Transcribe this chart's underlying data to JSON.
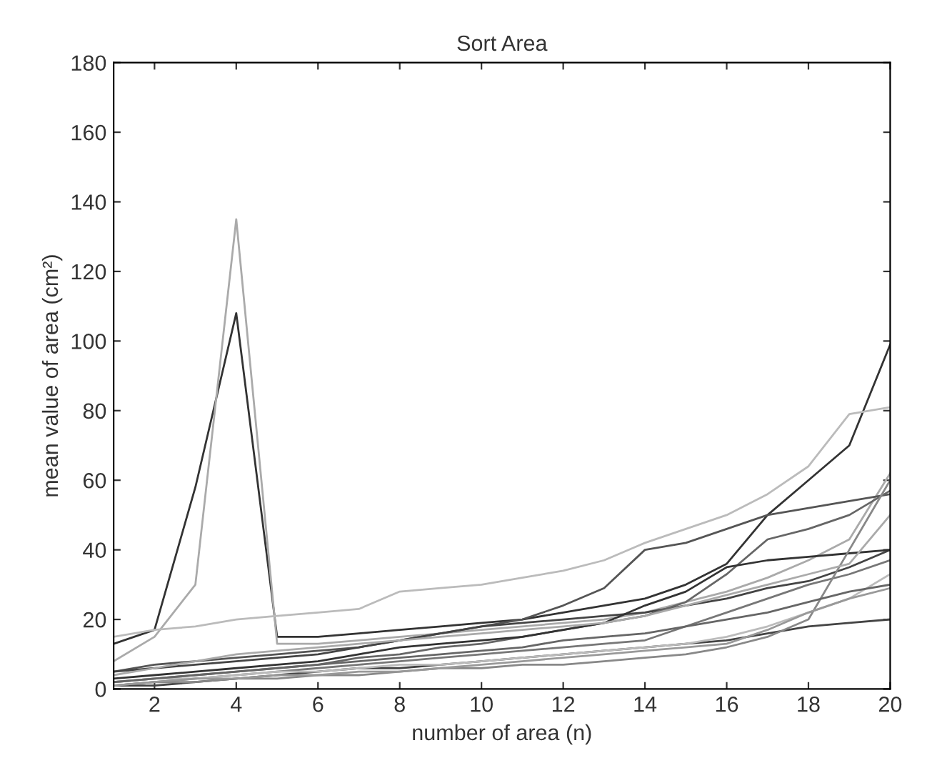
{
  "chart_data": {
    "type": "line",
    "title": "Sort Area",
    "xlabel": "number of area (n)",
    "ylabel": "mean value of area (cm²)",
    "x": [
      1,
      2,
      3,
      4,
      5,
      6,
      7,
      8,
      9,
      10,
      11,
      12,
      13,
      14,
      15,
      16,
      17,
      18,
      19,
      20
    ],
    "xlim": [
      1,
      20
    ],
    "ylim": [
      0,
      180
    ],
    "xticks": [
      2,
      4,
      6,
      8,
      10,
      12,
      14,
      16,
      18,
      20
    ],
    "yticks": [
      0,
      20,
      40,
      60,
      80,
      100,
      120,
      140,
      160,
      180
    ],
    "grid": false,
    "marker": "none",
    "line_style": "solid",
    "series": [
      {
        "color": "#333333",
        "values": [
          13,
          17,
          58,
          108,
          15,
          15,
          16,
          17,
          18,
          19,
          20,
          22,
          24,
          26,
          30,
          36,
          50,
          60,
          70,
          99
        ]
      },
      {
        "color": "#aaaaaa",
        "values": [
          8,
          15,
          30,
          135,
          13,
          13,
          14,
          15,
          16,
          17,
          18,
          19,
          20,
          22,
          25,
          28,
          32,
          37,
          43,
          62
        ]
      },
      {
        "color": "#bbbbbb",
        "values": [
          15,
          17,
          18,
          20,
          21,
          22,
          23,
          28,
          29,
          30,
          32,
          34,
          37,
          42,
          46,
          50,
          56,
          64,
          79,
          81
        ]
      },
      {
        "color": "#555555",
        "values": [
          5,
          7,
          8,
          9,
          10,
          11,
          12,
          14,
          16,
          18,
          20,
          24,
          29,
          40,
          42,
          46,
          50,
          52,
          54,
          56
        ]
      },
      {
        "color": "#444444",
        "values": [
          5,
          6,
          7,
          8,
          9,
          10,
          12,
          14,
          16,
          18,
          19,
          20,
          21,
          22,
          24,
          26,
          29,
          31,
          35,
          40
        ]
      },
      {
        "color": "#666666",
        "values": [
          2,
          3,
          4,
          5,
          6,
          7,
          9,
          10,
          12,
          13,
          15,
          17,
          19,
          21,
          25,
          33,
          43,
          46,
          50,
          57
        ]
      },
      {
        "color": "#777777",
        "values": [
          1,
          2,
          3,
          4,
          5,
          6,
          7,
          8,
          9,
          10,
          11,
          12,
          13,
          14,
          18,
          22,
          26,
          30,
          33,
          37
        ]
      },
      {
        "color": "#444444",
        "values": [
          1,
          1,
          2,
          3,
          4,
          5,
          6,
          6,
          7,
          8,
          9,
          10,
          11,
          12,
          13,
          14,
          16,
          18,
          19,
          20
        ]
      },
      {
        "color": "#333333",
        "values": [
          3,
          4,
          5,
          6,
          7,
          8,
          10,
          12,
          13,
          14,
          15,
          17,
          19,
          24,
          28,
          35,
          37,
          38,
          39,
          40
        ]
      },
      {
        "color": "#bbbbbb",
        "values": [
          2,
          3,
          3,
          4,
          5,
          5,
          6,
          7,
          7,
          8,
          9,
          10,
          11,
          12,
          13,
          15,
          18,
          22,
          26,
          33
        ]
      },
      {
        "color": "#888888",
        "values": [
          1,
          2,
          2,
          3,
          3,
          4,
          4,
          5,
          6,
          6,
          7,
          7,
          8,
          9,
          10,
          12,
          15,
          20,
          40,
          60
        ]
      },
      {
        "color": "#aaaaaa",
        "values": [
          4,
          6,
          8,
          10,
          11,
          12,
          13,
          14,
          15,
          16,
          17,
          18,
          19,
          21,
          24,
          27,
          30,
          33,
          36,
          50
        ]
      },
      {
        "color": "#666666",
        "values": [
          2,
          3,
          4,
          5,
          6,
          7,
          8,
          9,
          10,
          11,
          12,
          14,
          15,
          16,
          18,
          20,
          22,
          25,
          28,
          30
        ]
      },
      {
        "color": "#999999",
        "values": [
          1,
          2,
          3,
          3,
          4,
          4,
          5,
          5,
          6,
          7,
          8,
          9,
          10,
          11,
          12,
          13,
          17,
          22,
          26,
          29
        ]
      }
    ]
  }
}
